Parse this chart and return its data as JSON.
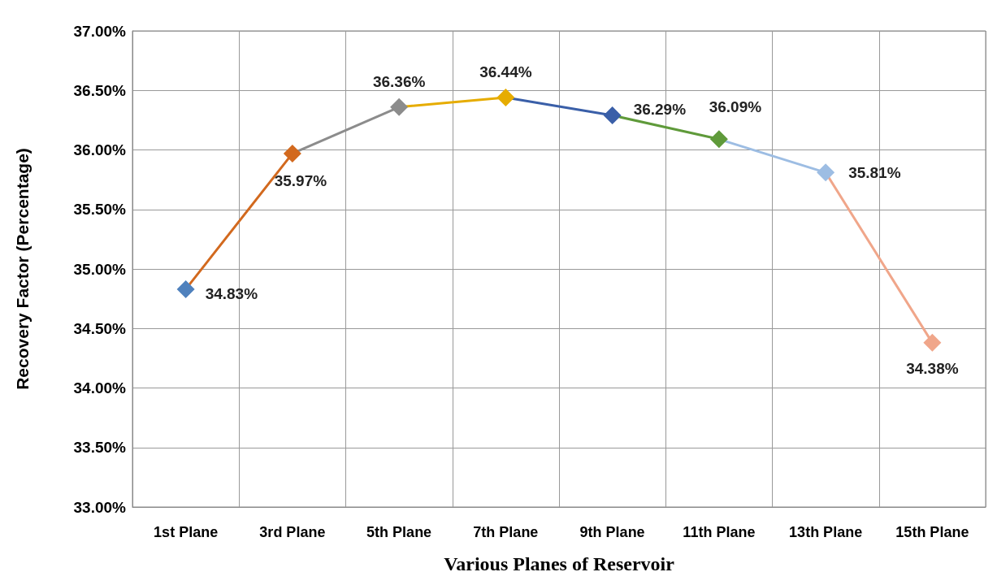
{
  "chart_data": {
    "type": "line",
    "xlabel": "Various Planes of Reservoir",
    "ylabel": "Recovery Factor (Percentage)",
    "categories": [
      "1st Plane",
      "3rd Plane",
      "5th Plane",
      "7th Plane",
      "9th Plane",
      "11th Plane",
      "13th Plane",
      "15th Plane"
    ],
    "values": [
      34.83,
      35.97,
      36.36,
      36.44,
      36.29,
      36.09,
      35.81,
      34.38
    ],
    "value_labels": [
      "34.83%",
      "35.97%",
      "36.36%",
      "36.44%",
      "36.29%",
      "36.09%",
      "35.81%",
      "34.38%"
    ],
    "colors": [
      "#4f81bd",
      "#d2691e",
      "#8c8c8c",
      "#e6ac00",
      "#3a5fa8",
      "#5f9a3a",
      "#9dbde3",
      "#f0a68a"
    ],
    "ylim": [
      33,
      37
    ],
    "yticks": [
      {
        "value": 33,
        "label": "33.00%"
      },
      {
        "value": 33.5,
        "label": "33.50%"
      },
      {
        "value": 34,
        "label": "34.00%"
      },
      {
        "value": 34.5,
        "label": "34.50%"
      },
      {
        "value": 35,
        "label": "35.00%"
      },
      {
        "value": 35.5,
        "label": "35.50%"
      },
      {
        "value": 36,
        "label": "36.00%"
      },
      {
        "value": 36.5,
        "label": "36.50%"
      },
      {
        "value": 37,
        "label": "37.00%"
      }
    ],
    "grid": true,
    "marker": "diamond",
    "line_style": "solid"
  }
}
